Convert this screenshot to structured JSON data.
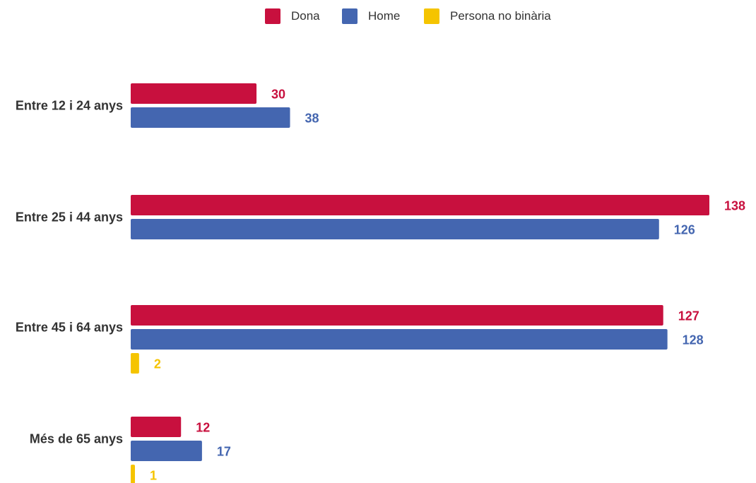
{
  "chart_data": {
    "type": "bar",
    "orientation": "horizontal",
    "title": "",
    "xlabel": "",
    "ylabel": "",
    "categories": [
      "Entre 12 i 24 anys",
      "Entre 25 i 44 anys",
      "Entre 45 i 64 anys",
      "Més de 65 anys"
    ],
    "series": [
      {
        "name": "Dona",
        "color": "#C8103E",
        "values": [
          30,
          138,
          127,
          12
        ]
      },
      {
        "name": "Home",
        "color": "#4466B0",
        "values": [
          38,
          126,
          128,
          17
        ]
      },
      {
        "name": "Persona no binària",
        "color": "#F5C400",
        "values": [
          null,
          null,
          2,
          1
        ]
      }
    ],
    "xlim": [
      0,
      138
    ],
    "grid": false,
    "legend_position": "top-center",
    "data_labels": true
  }
}
